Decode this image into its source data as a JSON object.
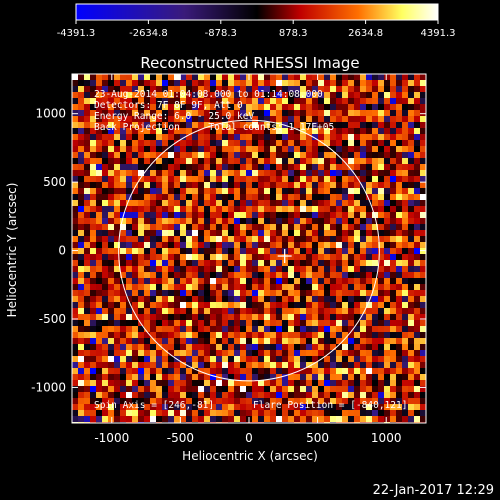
{
  "window": {
    "title": "Reconstructed RHESSI Image",
    "timestamp": "22-Jan-2017 12:29"
  },
  "colorbar": {
    "ticks": [
      "-4391.3",
      "-2634.8",
      "-878.3",
      "878.3",
      "2634.8",
      "4391.3"
    ],
    "range": [
      -4391.3,
      4391.3
    ]
  },
  "info": {
    "line1": "23-Aug-2014 01:04:08.000 to 01:14:08.000",
    "line2": "Detectors: 7F 8F 9F, Att 0",
    "line3": "Energy Range: 6.0 - 25.0 keV",
    "line4": "Back Projection     Total counts: 1.17E+05",
    "spin_axis": "Spin Axis = [246,-81]",
    "flare_position": "Flare Position = [-840,121]"
  },
  "chart_data": {
    "type": "heatmap",
    "title": "Reconstructed RHESSI Image",
    "xlabel": "Heliocentric X (arcsec)",
    "ylabel": "Heliocentric Y (arcsec)",
    "x_ticks": [
      -1000,
      -500,
      0,
      500,
      1000
    ],
    "y_ticks": [
      -1000,
      -500,
      0,
      500,
      1000
    ],
    "xlim": [
      -1290,
      1290
    ],
    "ylim": [
      -1260,
      1290
    ],
    "solar_disk_radius": 950,
    "disk_center": [
      0,
      0
    ],
    "crosshair": [
      260,
      -40
    ],
    "colormap": [
      "#0000ff",
      "#3a1b7a",
      "#000000",
      "#c00000",
      "#ff7000",
      "#ffff60",
      "#ffffff"
    ],
    "grid": false
  }
}
